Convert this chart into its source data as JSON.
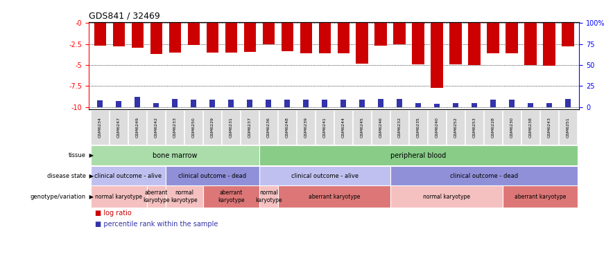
{
  "title": "GDS841 / 32469",
  "samples": [
    "GSM6234",
    "GSM6247",
    "GSM6249",
    "GSM6242",
    "GSM6233",
    "GSM6250",
    "GSM6229",
    "GSM6231",
    "GSM6237",
    "GSM6236",
    "GSM6248",
    "GSM6239",
    "GSM6241",
    "GSM6244",
    "GSM6245",
    "GSM6246",
    "GSM6232",
    "GSM6235",
    "GSM6240",
    "GSM6252",
    "GSM6253",
    "GSM6228",
    "GSM6230",
    "GSM6238",
    "GSM6243",
    "GSM6251"
  ],
  "log_ratio": [
    -2.7,
    -2.8,
    -2.95,
    -3.7,
    -3.5,
    -2.6,
    -3.5,
    -3.5,
    -3.4,
    -2.5,
    -3.3,
    -3.6,
    -3.6,
    -3.6,
    -4.8,
    -2.7,
    -2.5,
    -4.9,
    -7.7,
    -4.9,
    -5.0,
    -3.6,
    -3.6,
    -5.0,
    -5.1,
    -2.8
  ],
  "percentile": [
    0.08,
    0.07,
    0.12,
    0.05,
    0.1,
    0.09,
    0.09,
    0.09,
    0.09,
    0.09,
    0.09,
    0.09,
    0.09,
    0.09,
    0.09,
    0.1,
    0.1,
    0.05,
    0.04,
    0.05,
    0.05,
    0.09,
    0.09,
    0.05,
    0.05,
    0.1
  ],
  "bar_color": "#cc0000",
  "pct_color": "#3333aa",
  "ylim": [
    -10.3,
    0.15
  ],
  "yticks": [
    0,
    -2.5,
    -5.0,
    -7.5,
    -10
  ],
  "ytick_labels_left": [
    "-0",
    "-2.5",
    "-5",
    "-7.5",
    "-10"
  ],
  "ytick_labels_right": [
    "100%",
    "75",
    "50",
    "25",
    "0"
  ],
  "tissue_row": [
    {
      "label": "bone marrow",
      "start": 0,
      "end": 9,
      "color": "#aaddaa"
    },
    {
      "label": "peripheral blood",
      "start": 9,
      "end": 26,
      "color": "#88cc88"
    }
  ],
  "disease_row": [
    {
      "label": "clinical outcome - alive",
      "start": 0,
      "end": 4,
      "color": "#c0c0f0"
    },
    {
      "label": "clinical outcome - dead",
      "start": 4,
      "end": 9,
      "color": "#9090d8"
    },
    {
      "label": "clinical outcome - alive",
      "start": 9,
      "end": 16,
      "color": "#c0c0f0"
    },
    {
      "label": "clinical outcome - dead",
      "start": 16,
      "end": 26,
      "color": "#9090d8"
    }
  ],
  "geno_row": [
    {
      "label": "normal karyotype",
      "start": 0,
      "end": 3,
      "color": "#f5c0c0"
    },
    {
      "label": "aberrant\nkaryotype",
      "start": 3,
      "end": 4,
      "color": "#f5c0c0"
    },
    {
      "label": "normal\nkaryotype",
      "start": 4,
      "end": 6,
      "color": "#f5c0c0"
    },
    {
      "label": "aberrant\nkaryotype",
      "start": 6,
      "end": 9,
      "color": "#dd7777"
    },
    {
      "label": "normal\nkaryotype",
      "start": 9,
      "end": 10,
      "color": "#f5c0c0"
    },
    {
      "label": "aberrant karyotype",
      "start": 10,
      "end": 16,
      "color": "#dd7777"
    },
    {
      "label": "normal karyotype",
      "start": 16,
      "end": 22,
      "color": "#f5c0c0"
    },
    {
      "label": "aberrant karyotype",
      "start": 22,
      "end": 26,
      "color": "#dd7777"
    }
  ],
  "row_labels": [
    "tissue",
    "disease state",
    "genotype/variation"
  ]
}
